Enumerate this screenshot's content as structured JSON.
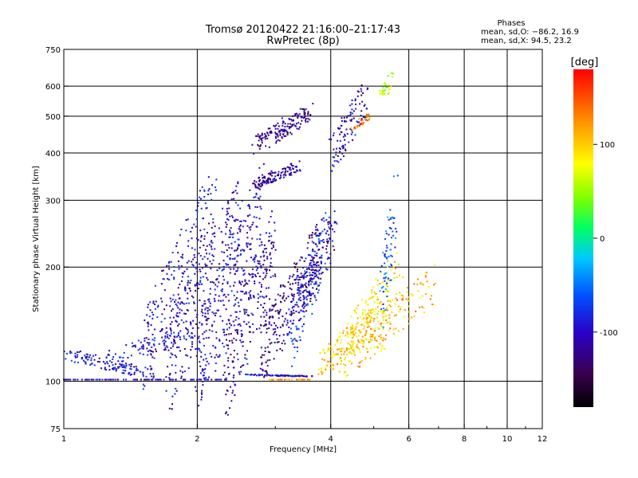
{
  "header": {
    "title_line1": "Tromsø 20120422 21:16:00–21:17:43",
    "title_line2": "RwPretec (8p)"
  },
  "phases_box": {
    "title": "Phases",
    "line1": "mean, sd,O: −86.2, 16.9",
    "line2": "mean, sd,X:  94.5, 23.2"
  },
  "colorbar": {
    "label": "[deg]",
    "ticks": [
      {
        "value": 100,
        "label": "100"
      },
      {
        "value": 0,
        "label": "0"
      },
      {
        "value": -100,
        "label": "-100"
      }
    ],
    "range": [
      -180,
      180
    ]
  },
  "chart_data": {
    "type": "scatter",
    "title": "Tromsø 20120422 21:16:00–21:17:43",
    "subtitle": "RwPretec (8p)",
    "xlabel": "Frequency [MHz]",
    "ylabel": "Stationary phase Virtual Height [km]",
    "x_scale": "log",
    "y_scale": "log",
    "xlim": [
      1,
      12
    ],
    "ylim": [
      75,
      750
    ],
    "x_ticks": [
      1,
      2,
      4,
      6,
      8,
      10,
      12
    ],
    "x_tick_labels": [
      "1",
      "2",
      "4",
      "6",
      "8",
      "10",
      "12"
    ],
    "y_ticks": [
      75,
      100,
      200,
      300,
      400,
      500,
      600,
      750
    ],
    "y_tick_labels": [
      "75",
      "100",
      "200",
      "300",
      "400",
      "500",
      "600",
      "750"
    ],
    "x_grid": [
      2,
      4,
      6,
      8,
      10
    ],
    "y_grid": [
      100,
      200,
      300,
      400,
      500,
      600
    ],
    "grid": true,
    "color_by": "phase_deg",
    "traces": [
      {
        "name": "",
        "x0": 1.0,
        "x1": 1.6,
        "h0": 118,
        "h1": 104,
        "phase": -95,
        "n": 120
      },
      {
        "name": "",
        "x0": 1.0,
        "x1": 2.3,
        "h0": 101,
        "h1": 101,
        "phase": -100,
        "n": 110
      },
      {
        "name": "",
        "x0": 1.25,
        "x1": 2.0,
        "h0": 112,
        "h1": 140,
        "phase": -90,
        "n": 90
      },
      {
        "name": "",
        "x0": 1.5,
        "x1": 2.2,
        "h0": 120,
        "h1": 290,
        "phase": -95,
        "n": 220
      },
      {
        "name": "",
        "x0": 1.7,
        "x1": 2.5,
        "h0": 105,
        "h1": 270,
        "phase": -105,
        "n": 260
      },
      {
        "name": "",
        "x0": 2.0,
        "x1": 2.8,
        "h0": 110,
        "h1": 290,
        "phase": -100,
        "n": 260
      },
      {
        "name": "",
        "x0": 2.3,
        "x1": 3.0,
        "h0": 102,
        "h1": 230,
        "phase": -110,
        "n": 220
      },
      {
        "name": "",
        "x0": 2.6,
        "x1": 3.6,
        "h0": 104,
        "h1": 103,
        "phase": -95,
        "n": 80
      },
      {
        "name": "",
        "x0": 2.8,
        "x1": 3.8,
        "h0": 118,
        "h1": 225,
        "phase": -125,
        "n": 260
      },
      {
        "name": "",
        "x0": 2.7,
        "x1": 3.4,
        "h0": 330,
        "h1": 370,
        "phase": -115,
        "n": 120
      },
      {
        "name": "",
        "x0": 2.7,
        "x1": 3.6,
        "h0": 420,
        "h1": 510,
        "phase": -120,
        "n": 160
      },
      {
        "name": "",
        "x0": 3.2,
        "x1": 4.0,
        "h0": 130,
        "h1": 250,
        "phase": -80,
        "n": 140
      },
      {
        "name": "",
        "x0": 3.4,
        "x1": 4.1,
        "h0": 165,
        "h1": 250,
        "phase": -100,
        "n": 100
      },
      {
        "name": "",
        "x0": 4.0,
        "x1": 4.8,
        "h0": 390,
        "h1": 560,
        "phase": -105,
        "n": 110
      },
      {
        "name": "",
        "x0": 3.8,
        "x1": 5.0,
        "h0": 110,
        "h1": 145,
        "phase": 100,
        "n": 140
      },
      {
        "name": "",
        "x0": 4.2,
        "x1": 5.8,
        "h0": 115,
        "h1": 200,
        "phase": 90,
        "n": 160
      },
      {
        "name": "",
        "x0": 4.6,
        "x1": 6.8,
        "h0": 120,
        "h1": 180,
        "phase": 110,
        "n": 150
      },
      {
        "name": "",
        "x0": 5.2,
        "x1": 5.6,
        "h0": 160,
        "h1": 300,
        "phase": -60,
        "n": 70
      },
      {
        "name": "",
        "x0": 5.2,
        "x1": 5.5,
        "h0": 560,
        "h1": 640,
        "phase": 60,
        "n": 30
      },
      {
        "name": "",
        "x0": 4.5,
        "x1": 4.9,
        "h0": 460,
        "h1": 500,
        "phase": 130,
        "n": 30
      },
      {
        "name": "",
        "x0": 2.9,
        "x1": 3.6,
        "h0": 101,
        "h1": 101,
        "phase": 120,
        "n": 40
      }
    ]
  }
}
